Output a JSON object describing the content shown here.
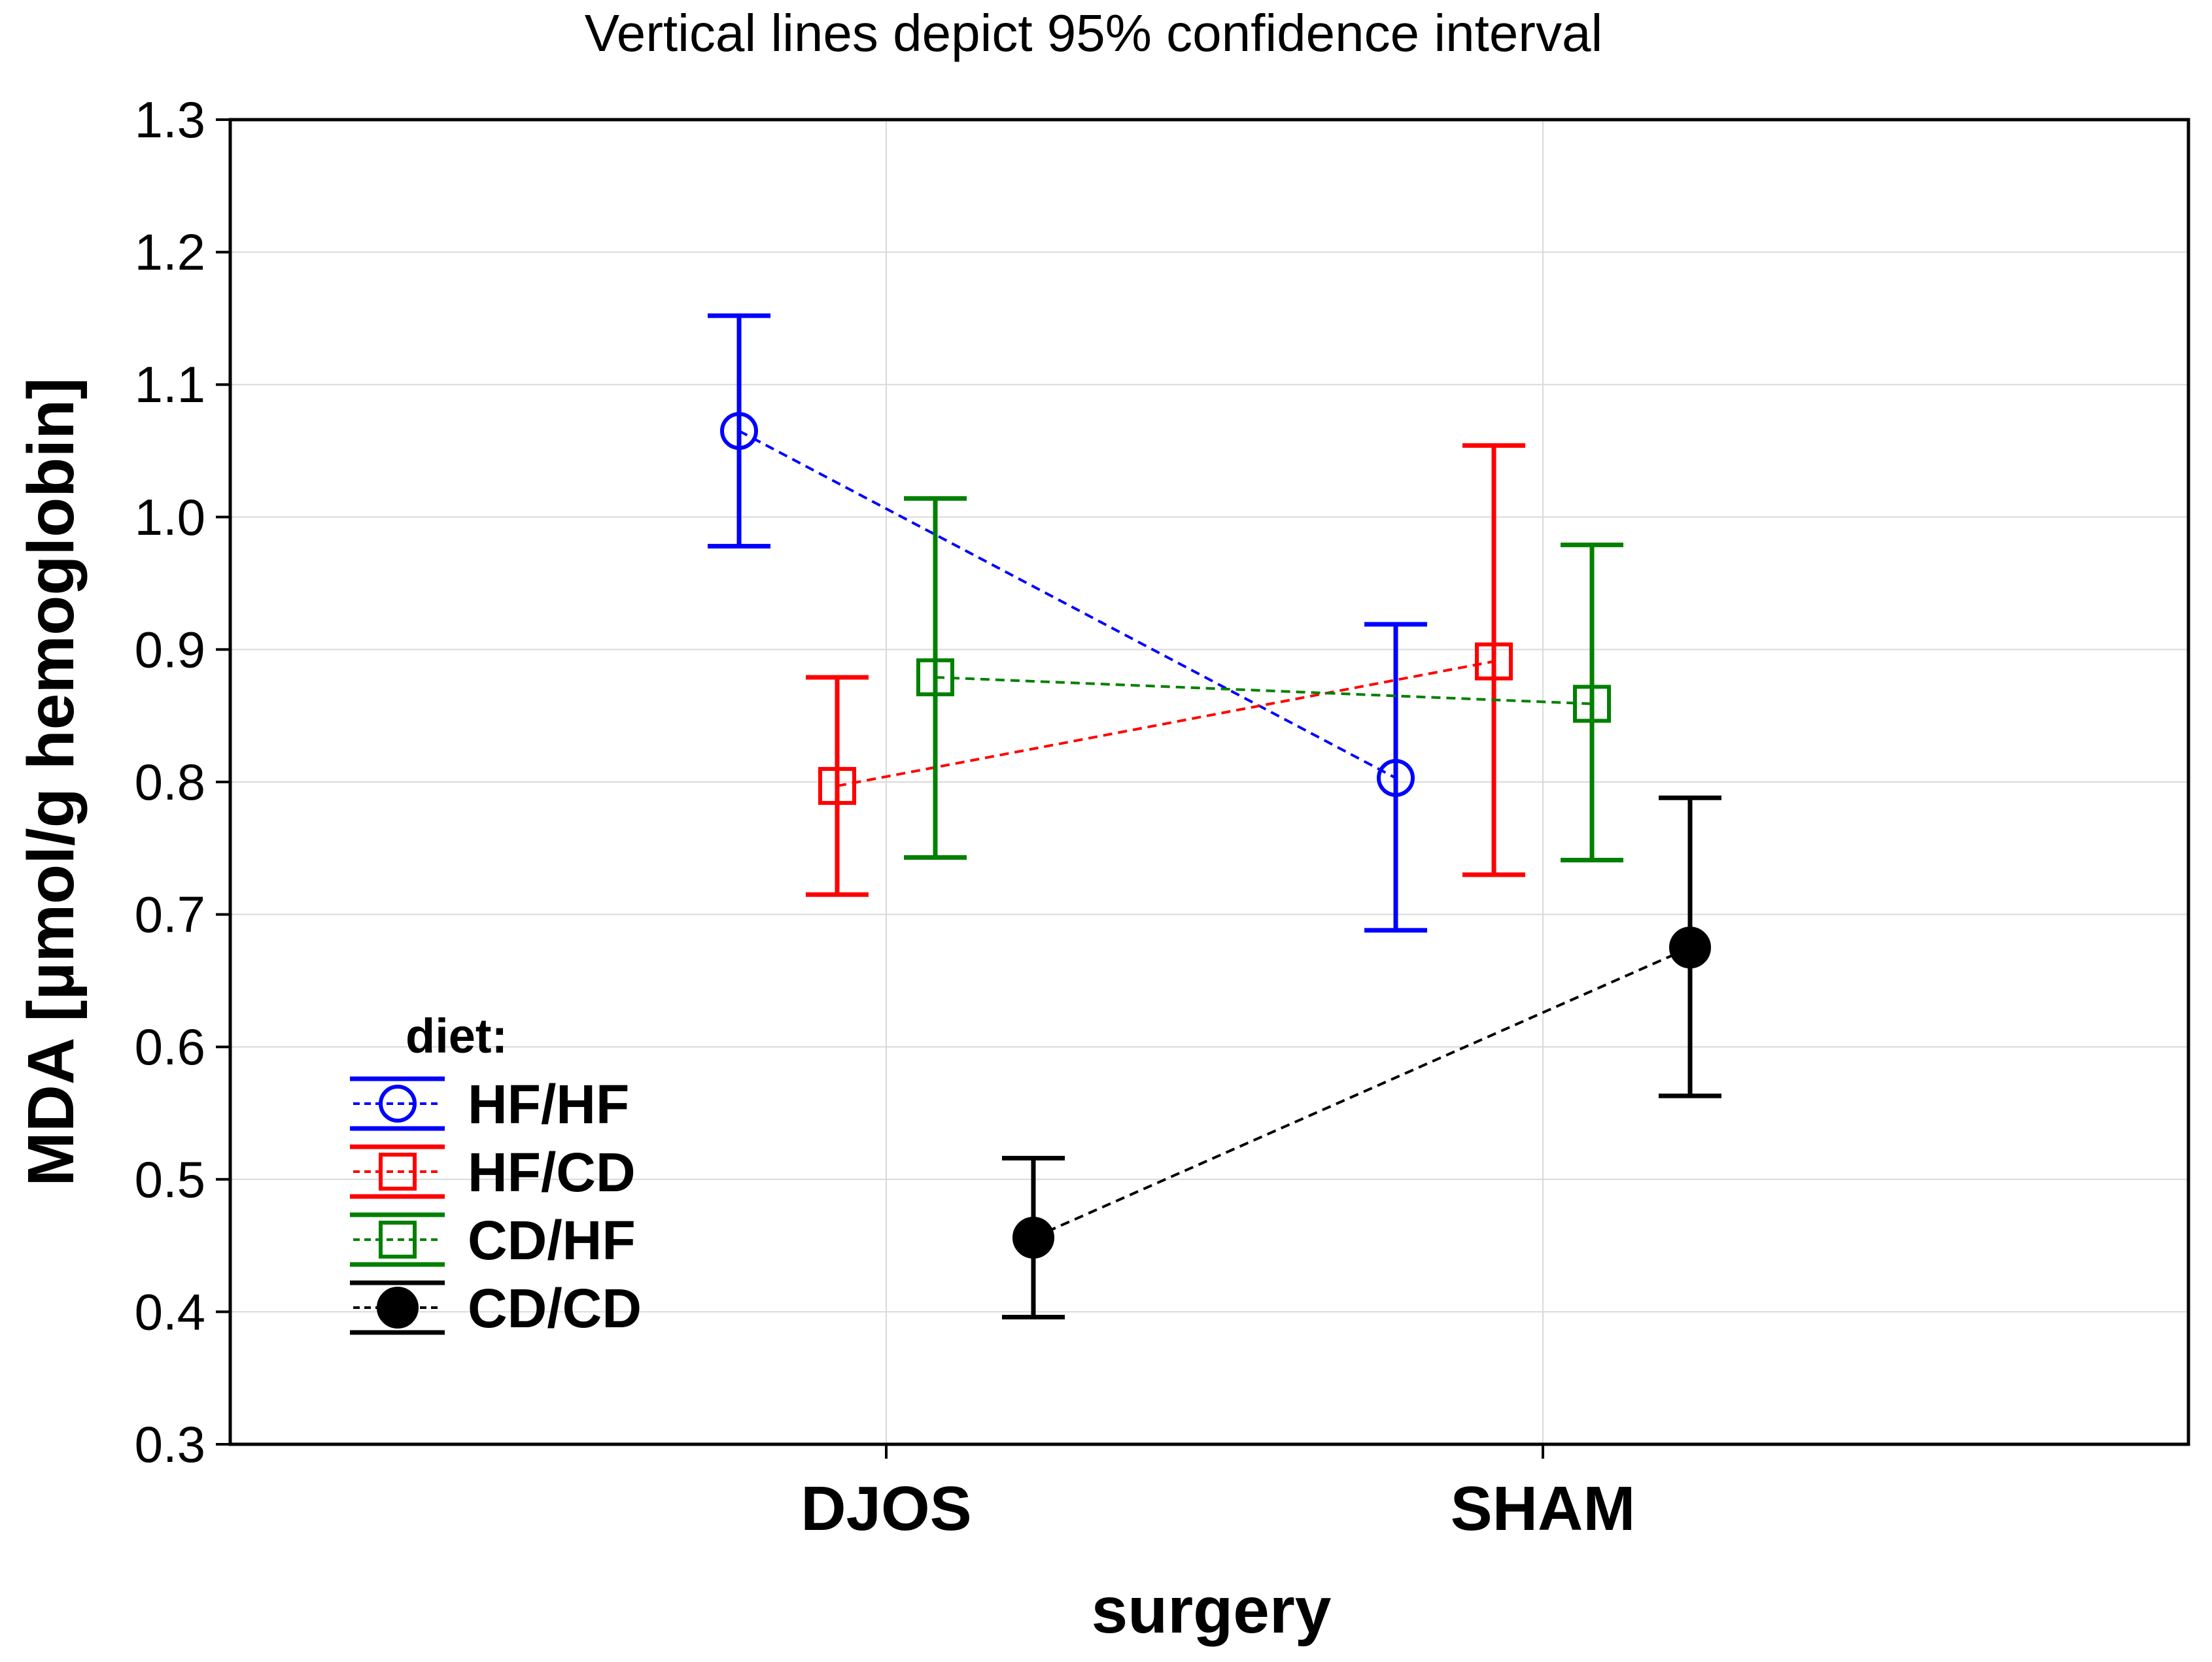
{
  "chart_data": {
    "type": "line",
    "subtitle": "Vertical lines depict 95% confidence interval",
    "xlabel": "surgery",
    "ylabel": "MDA [µmol/g hemoglobin]",
    "categories": [
      "DJOS",
      "SHAM"
    ],
    "ylim": [
      0.3,
      1.3
    ],
    "yticks": [
      "0.3",
      "0.4",
      "0.5",
      "0.6",
      "0.7",
      "0.8",
      "0.9",
      "1.0",
      "1.1",
      "1.2",
      "1.3"
    ],
    "grid": true,
    "legend_position": "bottom-left",
    "legend_title": "diet:",
    "series": [
      {
        "name": "HF/HF",
        "color": "#0000ff",
        "marker": "circle-open",
        "values": [
          1.065,
          0.803
        ],
        "ci_low": [
          0.978,
          0.688
        ],
        "ci_high": [
          1.152,
          0.919
        ]
      },
      {
        "name": "HF/CD",
        "color": "#ff0000",
        "marker": "square-open",
        "values": [
          0.797,
          0.891
        ],
        "ci_low": [
          0.715,
          0.73
        ],
        "ci_high": [
          0.879,
          1.054
        ]
      },
      {
        "name": "CD/HF",
        "color": "#008000",
        "marker": "square-open",
        "values": [
          0.879,
          0.859
        ],
        "ci_low": [
          0.743,
          0.741
        ],
        "ci_high": [
          1.014,
          0.979
        ]
      },
      {
        "name": "CD/CD",
        "color": "#000000",
        "marker": "circle-filled",
        "values": [
          0.456,
          0.675
        ],
        "ci_low": [
          0.396,
          0.563
        ],
        "ci_high": [
          0.516,
          0.788
        ]
      }
    ]
  }
}
